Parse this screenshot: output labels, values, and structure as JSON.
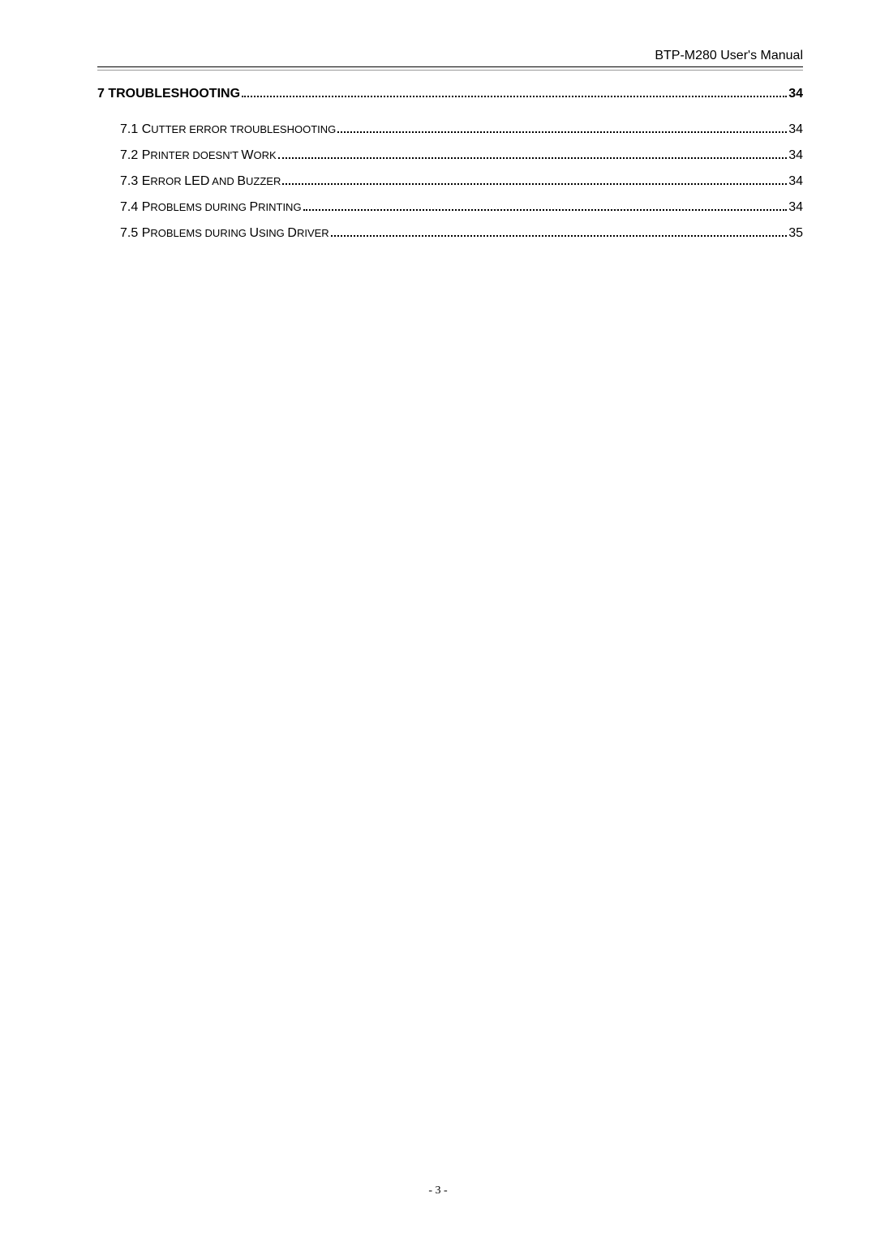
{
  "header": {
    "title": "BTP-M280 User's Manual"
  },
  "toc": {
    "main": {
      "title": "7 TROUBLESHOOTING",
      "page": "34"
    },
    "items": [
      {
        "title_prefix": "7.1 C",
        "title_rest": "utter error troubleshooting",
        "page": "34"
      },
      {
        "title_prefix": "7.2 P",
        "title_rest": "rinter doesn't ",
        "title_word2": "W",
        "title_rest2": "ork",
        "page": "34"
      },
      {
        "title_prefix": "7.3 E",
        "title_rest": "rror ",
        "title_word2": "LED",
        "title_rest2": " and ",
        "title_word3": "B",
        "title_rest3": "uzzer",
        "page": "34"
      },
      {
        "title_prefix": "7.4 P",
        "title_rest": "roblems during ",
        "title_word2": "P",
        "title_rest2": "rinting",
        "page": "34"
      },
      {
        "title_prefix": "7.5 P",
        "title_rest": "roblems during ",
        "title_word2": "U",
        "title_rest2": "sing ",
        "title_word3": "D",
        "title_rest3": "river",
        "page": "35"
      }
    ]
  },
  "footer": {
    "page_number": "- 3 -"
  }
}
